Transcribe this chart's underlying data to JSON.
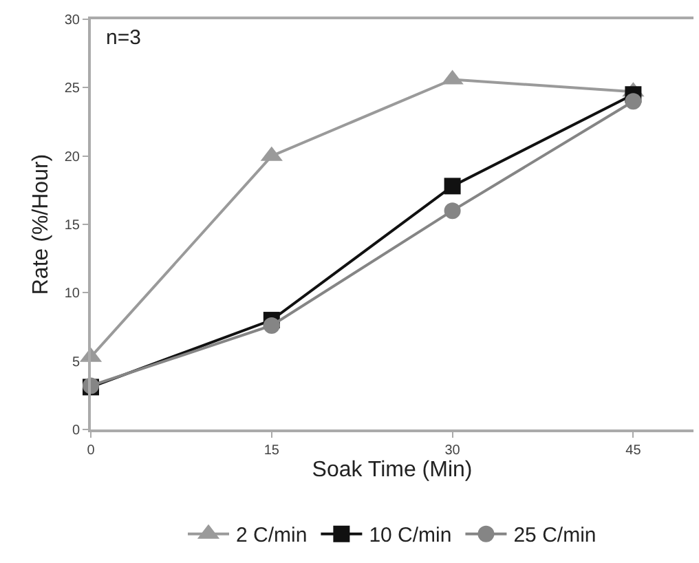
{
  "chart_data": {
    "type": "line",
    "xlabel": "Soak Time (Min)",
    "ylabel": "Rate (%/Hour)",
    "x": [
      0,
      15,
      30,
      45
    ],
    "xlim": [
      0,
      50
    ],
    "xticks": [
      0,
      15,
      30,
      45
    ],
    "ylim": [
      0,
      30
    ],
    "yticks": [
      0,
      5,
      10,
      15,
      20,
      25,
      30
    ],
    "grid": false,
    "legend": "bottom",
    "line_style": "solid",
    "annotations": [
      "n=3"
    ],
    "series": [
      {
        "name": "2 C/min",
        "color": "#9a9a9a",
        "marker": "triangle",
        "values": [
          5.3,
          20,
          25.6,
          24.7
        ]
      },
      {
        "name": "10 C/min",
        "color": "#111111",
        "marker": "square",
        "values": [
          3.1,
          8,
          17.8,
          24.5
        ]
      },
      {
        "name": "25 C/min",
        "color": "#858585",
        "marker": "circle",
        "values": [
          3.2,
          7.6,
          16,
          24
        ]
      }
    ]
  }
}
